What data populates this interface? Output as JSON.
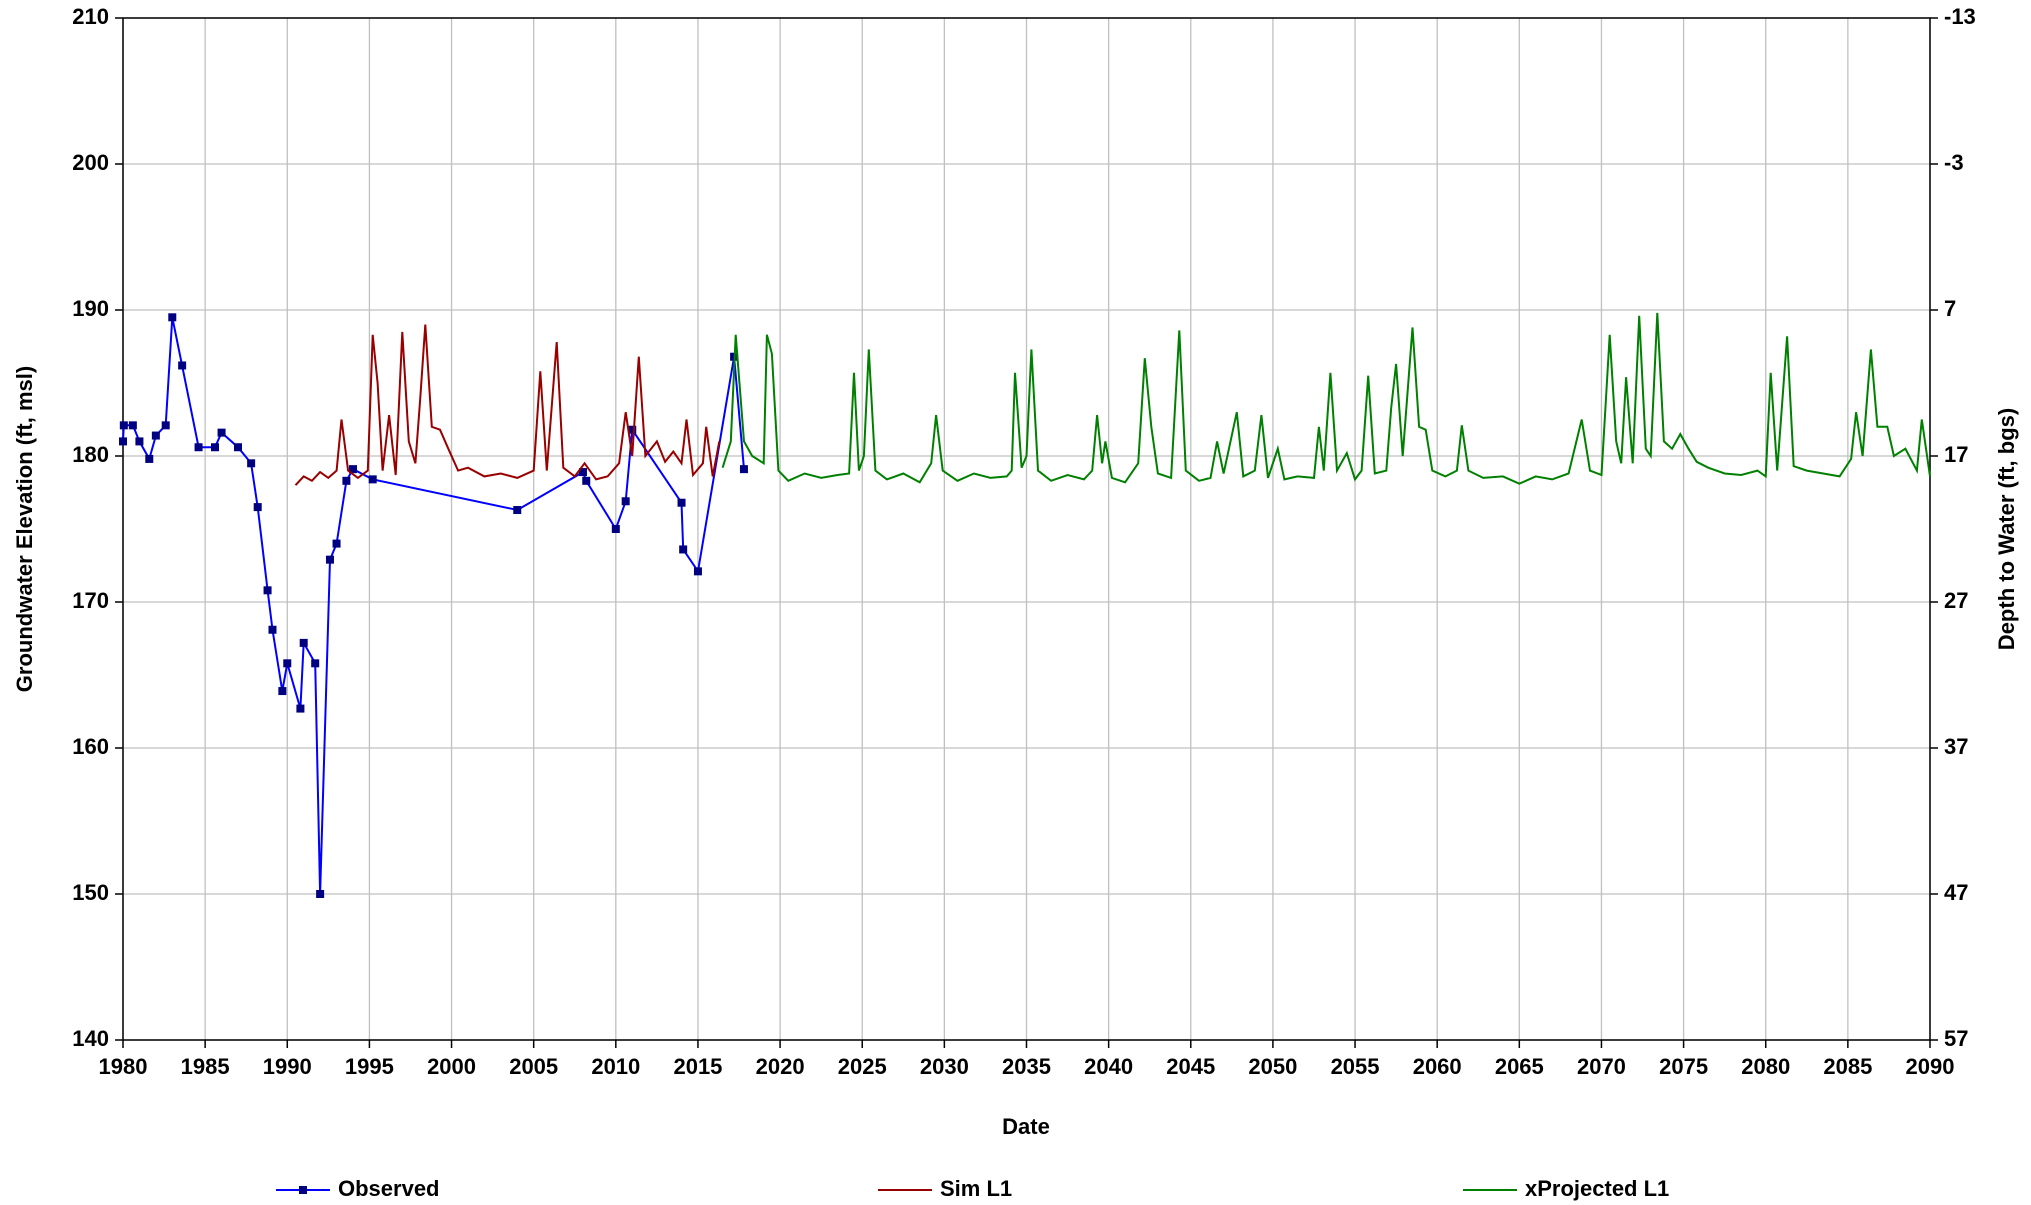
{
  "chart_data": {
    "type": "line",
    "xlabel": "Date",
    "ylabel": "Groundwater Elevation (ft, msl)",
    "y2label": "Depth to Water (ft, bgs)",
    "xlim": [
      1980,
      2090
    ],
    "xticks": [
      1980,
      1985,
      1990,
      1995,
      2000,
      2005,
      2010,
      2015,
      2020,
      2025,
      2030,
      2035,
      2040,
      2045,
      2050,
      2055,
      2060,
      2065,
      2070,
      2075,
      2080,
      2085,
      2090
    ],
    "ylim": [
      140,
      210
    ],
    "yticks": [
      140,
      150,
      160,
      170,
      180,
      190,
      200,
      210
    ],
    "y2lim": [
      57,
      -13
    ],
    "y2ticks": [
      57,
      47,
      37,
      27,
      17,
      7,
      -3,
      -13
    ],
    "grid": true,
    "legend": "bottom",
    "series": [
      {
        "name": "Observed",
        "color": "#0000ff",
        "marker_color": "#000080",
        "marker": "square",
        "x": [
          1980,
          1980.05,
          1980.6,
          1981,
          1981.6,
          1982,
          1982.6,
          1983,
          1983.6,
          1984.6,
          1985.6,
          1986,
          1987,
          1987.8,
          1988.2,
          1988.8,
          1989.1,
          1989.7,
          1990,
          1990.8,
          1991,
          1991.7,
          1992,
          1992.6,
          1993,
          1993.6,
          1994,
          1995.2,
          2004,
          2008,
          2008.2,
          2010,
          2010.6,
          2011,
          2014,
          2014.1,
          2015,
          2017.2,
          2017.8
        ],
        "values": [
          181,
          182.1,
          182.1,
          181,
          179.8,
          181.4,
          182.1,
          189.5,
          186.2,
          180.6,
          180.6,
          181.6,
          180.6,
          179.5,
          176.5,
          170.8,
          168.1,
          163.9,
          165.8,
          162.7,
          167.2,
          165.8,
          150,
          172.9,
          174,
          178.3,
          179.1,
          178.4,
          176.3,
          178.9,
          178.3,
          175,
          176.9,
          181.8,
          176.8,
          173.6,
          172.1,
          186.8,
          179.1
        ]
      },
      {
        "name": "Sim L1",
        "color": "#990000",
        "x": [
          1990.5,
          1991,
          1991.5,
          1992,
          1992.5,
          1993,
          1993.3,
          1993.7,
          1994.3,
          1994.9,
          1995.2,
          1995.5,
          1995.8,
          1996.2,
          1996.6,
          1997,
          1997.4,
          1997.8,
          1998.1,
          1998.4,
          1998.8,
          1999.3,
          1999.8,
          2000.4,
          2001,
          2002,
          2003,
          2004,
          2005,
          2005.4,
          2005.8,
          2006.4,
          2006.8,
          2007.5,
          2008.1,
          2008.8,
          2009.5,
          2010.2,
          2010.6,
          2011,
          2011.4,
          2011.8,
          2012.5,
          2013,
          2013.5,
          2014,
          2014.3,
          2014.7,
          2015.3,
          2015.5,
          2015.9,
          2016.3
        ],
        "values": [
          178,
          178.6,
          178.3,
          178.9,
          178.5,
          179,
          182.5,
          179,
          178.5,
          179,
          188.3,
          185,
          179,
          182.8,
          178.7,
          188.5,
          181,
          179.5,
          184,
          189,
          182,
          181.8,
          180.5,
          179,
          179.2,
          178.6,
          178.8,
          178.5,
          179,
          185.8,
          179,
          187.8,
          179.2,
          178.6,
          179.5,
          178.4,
          178.6,
          179.5,
          183,
          180,
          186.8,
          180,
          181,
          179.6,
          180.3,
          179.5,
          182.5,
          178.7,
          179.5,
          182,
          178.6,
          181
        ]
      },
      {
        "name": "xProjected L1",
        "color": "#008000",
        "x": [
          2016.5,
          2017,
          2017.3,
          2017.8,
          2018.3,
          2019,
          2019.2,
          2019.5,
          2019.9,
          2020.5,
          2021.5,
          2022.5,
          2023.5,
          2024.2,
          2024.5,
          2024.8,
          2025.1,
          2025.4,
          2025.8,
          2026.5,
          2027.5,
          2028.5,
          2029.2,
          2029.5,
          2029.9,
          2030.8,
          2031.8,
          2032.8,
          2033.8,
          2034.1,
          2034.3,
          2034.7,
          2035,
          2035.3,
          2035.7,
          2036.5,
          2037.5,
          2038.5,
          2039,
          2039.3,
          2039.6,
          2039.8,
          2040.2,
          2041,
          2041.8,
          2042.2,
          2042.6,
          2043,
          2043.8,
          2044.3,
          2044.7,
          2045.5,
          2046.2,
          2046.6,
          2047,
          2047.8,
          2048.2,
          2048.9,
          2049.3,
          2049.7,
          2050.3,
          2050.7,
          2051.5,
          2052.5,
          2052.8,
          2053.1,
          2053.5,
          2053.9,
          2054.5,
          2055,
          2055.4,
          2055.8,
          2056.2,
          2056.9,
          2057.2,
          2057.5,
          2057.9,
          2058.5,
          2058.9,
          2059.3,
          2059.7,
          2060.5,
          2061.2,
          2061.5,
          2061.9,
          2062.8,
          2064,
          2065,
          2066,
          2067,
          2068,
          2068.8,
          2069.3,
          2070,
          2070.5,
          2070.9,
          2071.2,
          2071.5,
          2071.9,
          2072.3,
          2072.7,
          2073,
          2073.4,
          2073.8,
          2074.3,
          2074.8,
          2075.3,
          2075.8,
          2076.5,
          2077.5,
          2078.5,
          2079.5,
          2080,
          2080.3,
          2080.7,
          2081.3,
          2081.7,
          2082.5,
          2083.5,
          2084.5,
          2085.2,
          2085.5,
          2085.9,
          2086.4,
          2086.8,
          2087.4,
          2087.8,
          2088.5,
          2089.2,
          2089.5,
          2090
        ],
        "values": [
          179.2,
          181,
          188.3,
          181,
          180,
          179.5,
          188.3,
          187,
          179,
          178.3,
          178.8,
          178.5,
          178.7,
          178.8,
          185.7,
          179,
          180,
          187.3,
          179,
          178.4,
          178.8,
          178.2,
          179.5,
          182.8,
          179,
          178.3,
          178.8,
          178.5,
          178.6,
          179,
          185.7,
          179.2,
          180,
          187.3,
          179,
          178.3,
          178.7,
          178.4,
          179,
          182.8,
          179.5,
          181,
          178.5,
          178.2,
          179.5,
          186.7,
          182,
          178.8,
          178.5,
          188.6,
          179,
          178.3,
          178.5,
          181,
          178.8,
          183,
          178.6,
          179,
          182.8,
          178.5,
          180.5,
          178.4,
          178.6,
          178.5,
          182,
          179,
          185.7,
          179,
          180.2,
          178.4,
          179,
          185.5,
          178.8,
          179,
          183.3,
          186.3,
          180,
          188.8,
          182,
          181.8,
          179,
          178.6,
          179,
          182.1,
          179,
          178.5,
          178.6,
          178.1,
          178.6,
          178.4,
          178.8,
          182.5,
          179,
          178.7,
          188.3,
          181,
          179.5,
          185.4,
          179.5,
          189.6,
          180.5,
          180,
          189.8,
          181,
          180.5,
          181.5,
          180.5,
          179.6,
          179.2,
          178.8,
          178.7,
          179,
          178.6,
          185.7,
          179,
          188.2,
          179.3,
          179,
          178.8,
          178.6,
          179.8,
          183,
          180,
          187.3,
          182,
          182,
          180,
          180.5,
          179,
          182.5,
          178.6
        ]
      }
    ]
  }
}
